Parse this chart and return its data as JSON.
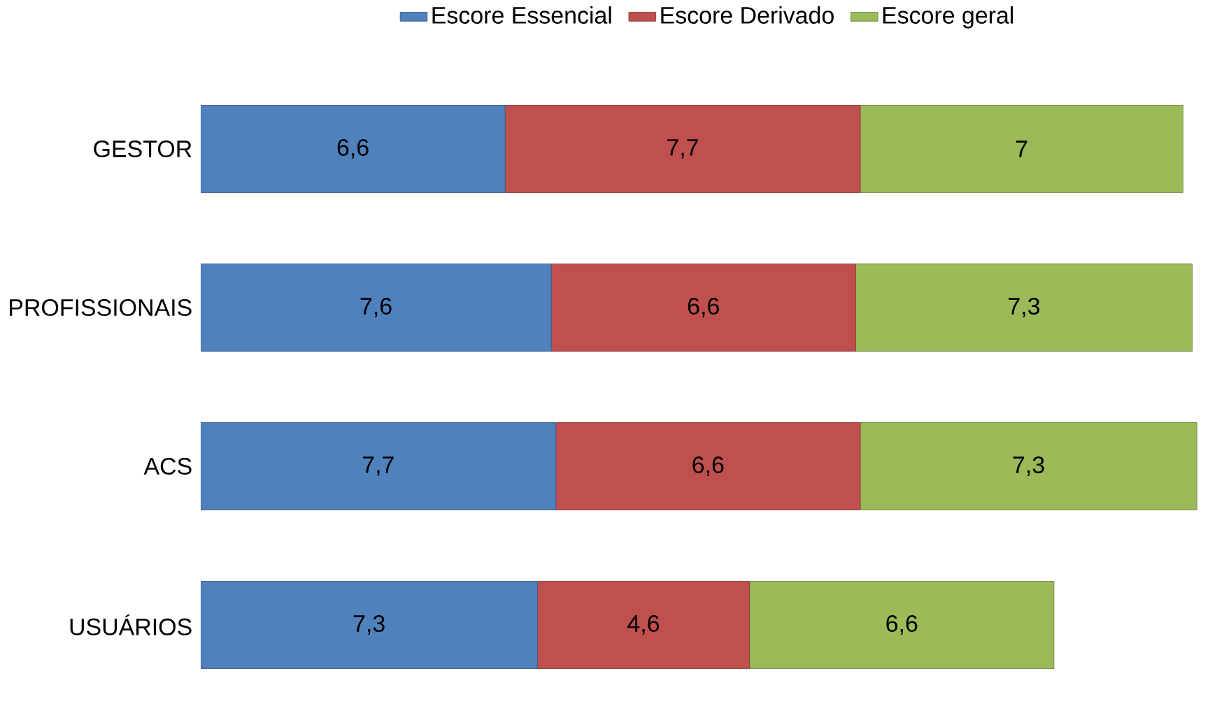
{
  "chart_data": {
    "type": "bar",
    "orientation": "horizontal",
    "stacked": true,
    "legend": "top",
    "categories": [
      "GESTOR",
      "PROFISSIONAIS",
      "ACS",
      "USUÁRIOS"
    ],
    "series": [
      {
        "name": "Escore Essencial",
        "color": "#4f81bd",
        "values": [
          6.6,
          7.6,
          7.7,
          7.3
        ],
        "value_labels": [
          "6,6",
          "7,6",
          "7,7",
          "7,3"
        ]
      },
      {
        "name": "Escore Derivado",
        "color": "#c0504d",
        "values": [
          7.7,
          6.6,
          6.6,
          4.6
        ],
        "value_labels": [
          "7,7",
          "6,6",
          "6,6",
          "4,6"
        ]
      },
      {
        "name": "Escore geral",
        "color": "#9bbb59",
        "values": [
          7,
          7.3,
          7.3,
          6.6
        ],
        "value_labels": [
          "7",
          "7,3",
          "7,3",
          "6,6"
        ]
      }
    ]
  }
}
